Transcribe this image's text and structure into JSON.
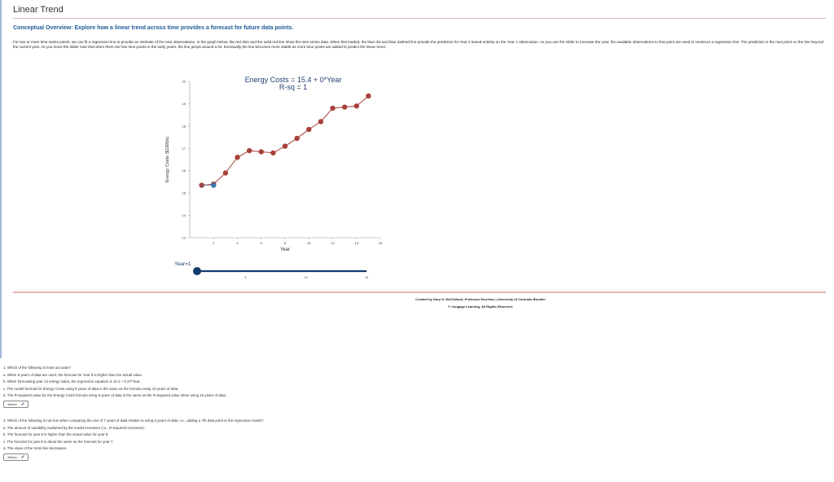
{
  "header": {
    "title": "Linear Trend",
    "subtitle": "Conceptual Overview: Explore how a linear trend across time provides a forecast for future data points."
  },
  "intro": "For two or more time series points, we can fit a regression line to provide an estimate of the next observations. In the graph below, the red dots and the solid red line show the time series data. When first loaded, the blue dot and blue dashed line provide the prediction for Year 2 based entirely on the Year 1 observation. As you use the slider to increase the year, the available observations to that point are used to construct a regression line. The prediction is the next point on the line beyond the current year. As you move the slider note that when there are few time points in the early years, the line jumps around a lot. Eventually the line becomes more stable as more time points are added to predict the linear trend.",
  "chart_data": {
    "type": "line",
    "title": "Energy Costs = 15.4 + 0*Year",
    "subtitle": "R-sq = 1",
    "xlabel": "Year",
    "ylabel": "Energy Costs ($1000s)",
    "xlim": [
      0,
      16
    ],
    "ylim": [
      13,
      20
    ],
    "xticks": [
      2,
      4,
      6,
      8,
      10,
      12,
      14,
      16
    ],
    "yticks": [
      13,
      14,
      15,
      16,
      17,
      18,
      19,
      20
    ],
    "grid": false,
    "series": [
      {
        "color": "#a8403a",
        "x": [
          1,
          2,
          3,
          4,
          5,
          6,
          7,
          8,
          9,
          10,
          11,
          12,
          13,
          14,
          15
        ],
        "values": [
          15.35,
          15.4,
          15.9,
          16.6,
          16.9,
          16.85,
          16.8,
          17.1,
          17.45,
          17.85,
          18.2,
          18.8,
          18.85,
          18.9,
          19.35
        ]
      },
      {
        "color": "#3a78b0",
        "dashed": true,
        "x": [
          1,
          2
        ],
        "values": [
          15.35,
          15.35
        ]
      }
    ]
  },
  "slider": {
    "label": "Year=1",
    "value": 1,
    "min": 1,
    "max": 15,
    "ticks": [
      "5",
      "10",
      "15"
    ],
    "color": "#123c6e"
  },
  "footer": {
    "credit": "Created by Gary H. McClelland, Professor Emeritus | University of Colorado Boulder",
    "copyright": "© Cengage Learning. All Rights Reserved."
  },
  "questions": [
    {
      "prompt": "1.  Which of the following is least accurate?",
      "options": [
        "a. When 8 years of data are used, the forecast for Year 9 is higher than the actual value.",
        "b. When forecasting year 12 energy sales, the regression equation is 15.2 + 0.27*Year.",
        "c. The model formula for Energy Costs using 9 years of data is the same as the formula using 10 years of data.",
        "d. The R-Squared value for the Energy Costs formula using 9 years of data is the same as the R-Squared value when using 10 years of data."
      ],
      "select": "-Select-"
    },
    {
      "prompt": "2.  Which of the following is not true when comparing the use of 7 years of data relative to using 6 years of data, i.e., adding a 7th data point to the regression model?",
      "options": [
        "a. The amount of variability explained by the model increases (i.e., R-Squared increases).",
        "b. The forecast for year 8 is higher than the actual value for year 8.",
        "c. The forecast for year 8 is about the same as the forecast for year 7.",
        "d. The slope of the trend line decreases."
      ],
      "select": "-Select-"
    }
  ]
}
